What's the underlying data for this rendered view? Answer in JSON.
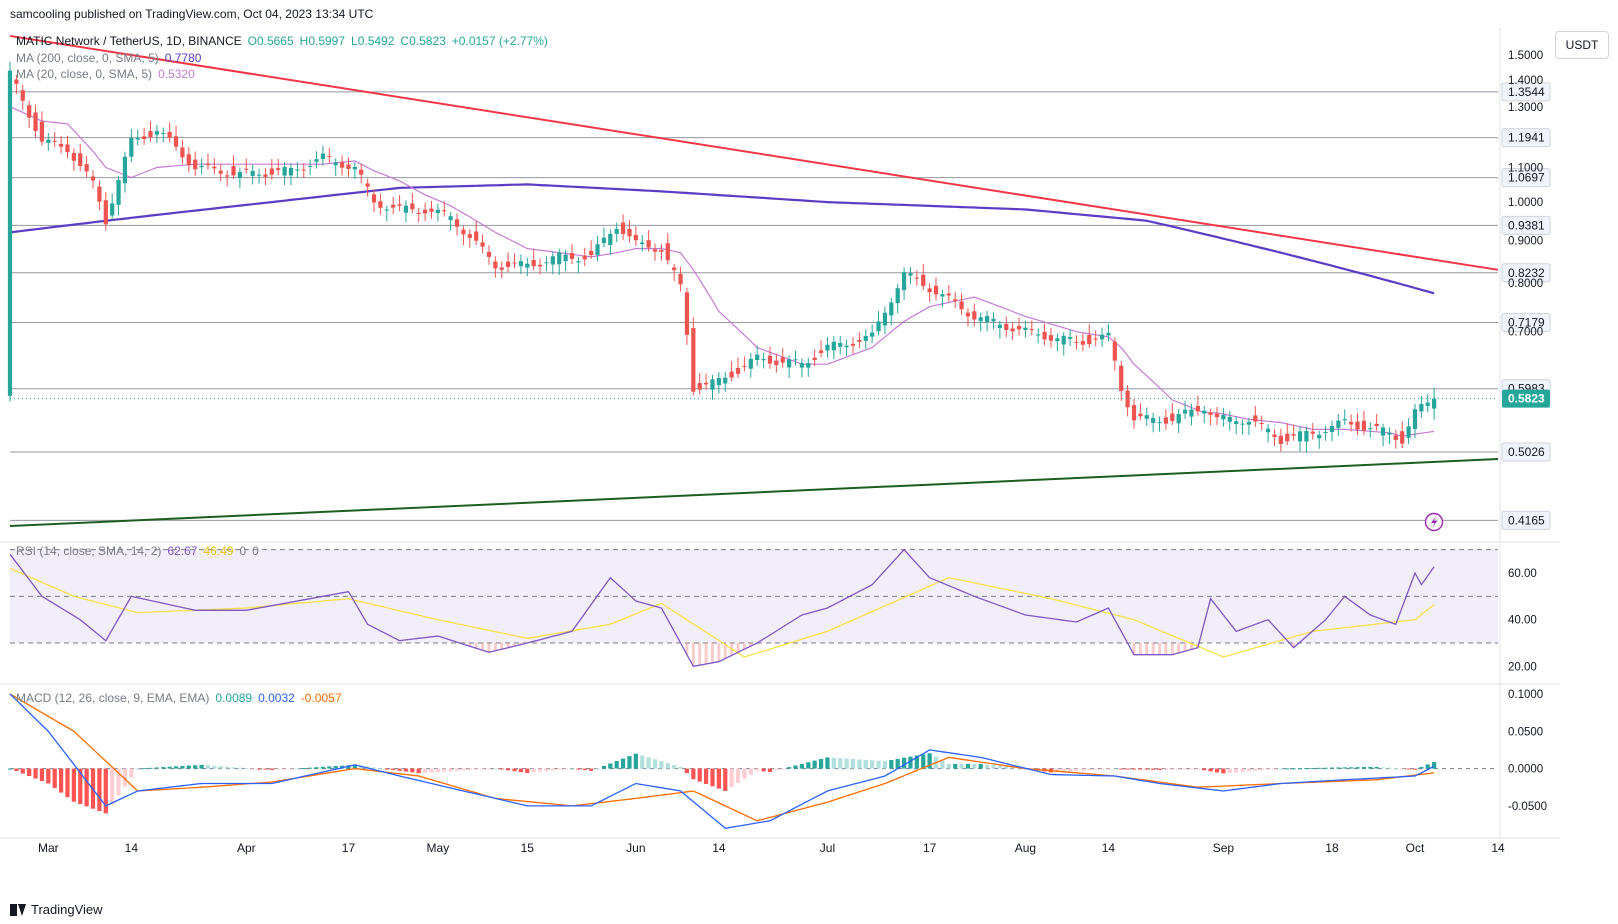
{
  "header": {
    "published": "samcooling published on TradingView.com, Oct 04, 2023 13:34 UTC"
  },
  "unit_label": "USDT",
  "footer": {
    "brand": "TradingView"
  },
  "colors": {
    "up": "#26a69a",
    "down": "#ef5350",
    "ma200": "#5b3cc4",
    "ma20": "#c67ad6",
    "resistance": "#f23645",
    "support": "#1b5e20",
    "rsi": "#7e57c2",
    "rsi_ma": "#f5e14a",
    "macd": "#2962ff",
    "signal": "#ff6d00"
  },
  "chart_data": [
    {
      "type": "candlestick",
      "legend": {
        "symbol": "MATIC Network / TetherUS, 1D, BINANCE",
        "open": "O0.5665",
        "high": "H0.5997",
        "low": "L0.5492",
        "close": "C0.5823",
        "change": "+0.0157 (+2.77%)",
        "ma200": "MA (200, close, 0, SMA, 5)",
        "ma200_value": "0.7780",
        "ma20": "MA (20, close, 0, SMA, 5)",
        "ma20_value": "0.5320"
      },
      "y_scale": "log",
      "y_range": [
        0.4,
        1.52
      ],
      "x_range": [
        "2023-02-23",
        "2023-10-14"
      ],
      "x_ticks": [
        {
          "date": "2023-03-01",
          "label": "Mar"
        },
        {
          "date": "2023-03-14",
          "label": "14"
        },
        {
          "date": "2023-04-01",
          "label": "Apr"
        },
        {
          "date": "2023-04-17",
          "label": "17"
        },
        {
          "date": "2023-05-01",
          "label": "May"
        },
        {
          "date": "2023-05-15",
          "label": "15"
        },
        {
          "date": "2023-06-01",
          "label": "Jun"
        },
        {
          "date": "2023-06-14",
          "label": "14"
        },
        {
          "date": "2023-07-01",
          "label": "Jul"
        },
        {
          "date": "2023-07-17",
          "label": "17"
        },
        {
          "date": "2023-08-01",
          "label": "Aug"
        },
        {
          "date": "2023-08-14",
          "label": "14"
        },
        {
          "date": "2023-09-01",
          "label": "Sep"
        },
        {
          "date": "2023-09-18",
          "label": "18"
        },
        {
          "date": "2023-10-01",
          "label": "Oct"
        },
        {
          "date": "2023-10-14",
          "label": "14"
        }
      ],
      "y_ticks": [
        "1.5000",
        "1.4000",
        "1.3000",
        "1.1000",
        "1.0000",
        "0.9000",
        "0.8000",
        "0.7000"
      ],
      "levels": [
        "1.3544",
        "1.1941",
        "1.0697",
        "0.9381",
        "0.8232",
        "0.7179",
        "0.5983",
        "0.5026",
        "0.4165"
      ],
      "last_price": "0.5823",
      "anchors": [
        [
          "2023-02-23",
          1.42,
          1.3
        ],
        [
          "2023-02-28",
          1.18,
          1.25
        ],
        [
          "2023-03-04",
          1.16,
          1.24
        ],
        [
          "2023-03-08",
          1.05,
          1.15
        ],
        [
          "2023-03-10",
          0.95,
          1.1
        ],
        [
          "2023-03-14",
          1.18,
          1.07
        ],
        [
          "2023-03-18",
          1.22,
          1.1
        ],
        [
          "2023-03-24",
          1.1,
          1.11
        ],
        [
          "2023-03-31",
          1.08,
          1.11
        ],
        [
          "2023-04-08",
          1.09,
          1.11
        ],
        [
          "2023-04-13",
          1.13,
          1.11
        ],
        [
          "2023-04-18",
          1.1,
          1.12
        ],
        [
          "2023-04-21",
          1.0,
          1.09
        ],
        [
          "2023-04-25",
          0.98,
          1.06
        ],
        [
          "2023-04-29",
          0.98,
          1.02
        ],
        [
          "2023-05-03",
          0.96,
          0.99
        ],
        [
          "2023-05-10",
          0.84,
          0.92
        ],
        [
          "2023-05-15",
          0.84,
          0.88
        ],
        [
          "2023-05-20",
          0.86,
          0.87
        ],
        [
          "2023-05-25",
          0.86,
          0.86
        ],
        [
          "2023-05-29",
          0.94,
          0.87
        ],
        [
          "2023-06-01",
          0.89,
          0.88
        ],
        [
          "2023-06-05",
          0.88,
          0.88
        ],
        [
          "2023-06-08",
          0.79,
          0.87
        ],
        [
          "2023-06-10",
          0.6,
          0.83
        ],
        [
          "2023-06-14",
          0.61,
          0.74
        ],
        [
          "2023-06-20",
          0.65,
          0.67
        ],
        [
          "2023-06-27",
          0.64,
          0.64
        ],
        [
          "2023-07-01",
          0.67,
          0.64
        ],
        [
          "2023-07-08",
          0.69,
          0.67
        ],
        [
          "2023-07-13",
          0.82,
          0.72
        ],
        [
          "2023-07-17",
          0.79,
          0.75
        ],
        [
          "2023-07-24",
          0.73,
          0.77
        ],
        [
          "2023-08-01",
          0.7,
          0.73
        ],
        [
          "2023-08-09",
          0.68,
          0.7
        ],
        [
          "2023-08-14",
          0.69,
          0.69
        ],
        [
          "2023-08-16",
          0.6,
          0.67
        ],
        [
          "2023-08-18",
          0.55,
          0.64
        ],
        [
          "2023-08-24",
          0.55,
          0.58
        ],
        [
          "2023-08-29",
          0.57,
          0.56
        ],
        [
          "2023-08-31",
          0.55,
          0.56
        ],
        [
          "2023-09-05",
          0.55,
          0.55
        ],
        [
          "2023-09-10",
          0.52,
          0.545
        ],
        [
          "2023-09-15",
          0.53,
          0.535
        ],
        [
          "2023-09-20",
          0.545,
          0.535
        ],
        [
          "2023-09-27",
          0.53,
          0.53
        ],
        [
          "2023-09-29",
          0.52,
          0.525
        ],
        [
          "2023-10-01",
          0.56,
          0.528
        ],
        [
          "2023-10-04",
          0.5823,
          0.532
        ]
      ],
      "ma200_anchors": [
        [
          "2023-02-23",
          0.92
        ],
        [
          "2023-03-10",
          0.95
        ],
        [
          "2023-04-05",
          1.0
        ],
        [
          "2023-04-25",
          1.04
        ],
        [
          "2023-05-15",
          1.05
        ],
        [
          "2023-06-05",
          1.03
        ],
        [
          "2023-07-01",
          1.0
        ],
        [
          "2023-08-01",
          0.98
        ],
        [
          "2023-08-20",
          0.95
        ],
        [
          "2023-09-10",
          0.87
        ],
        [
          "2023-10-04",
          0.778
        ]
      ],
      "resistance_line": [
        [
          "2023-02-23",
          1.58
        ],
        [
          "2023-10-14",
          0.83
        ]
      ],
      "support_line": [
        [
          "2023-02-23",
          0.41
        ],
        [
          "2023-10-14",
          0.493
        ]
      ]
    },
    {
      "type": "line",
      "title": "RSI (14, close, SMA, 14, 2)",
      "values_label": [
        "62.67",
        "46.49",
        "0",
        "0"
      ],
      "y_range": [
        15,
        72
      ],
      "y_ticks": [
        "60.00",
        "40.00",
        "20.00"
      ],
      "bands": [
        30,
        50,
        70
      ],
      "rsi_anchors": [
        [
          "2023-02-23",
          68
        ],
        [
          "2023-02-28",
          50
        ],
        [
          "2023-03-06",
          40
        ],
        [
          "2023-03-10",
          31
        ],
        [
          "2023-03-14",
          50
        ],
        [
          "2023-03-24",
          44
        ],
        [
          "2023-04-01",
          44
        ],
        [
          "2023-04-13",
          50
        ],
        [
          "2023-04-17",
          52
        ],
        [
          "2023-04-20",
          38
        ],
        [
          "2023-04-25",
          31
        ],
        [
          "2023-05-01",
          33
        ],
        [
          "2023-05-09",
          26
        ],
        [
          "2023-05-15",
          30
        ],
        [
          "2023-05-22",
          35
        ],
        [
          "2023-05-28",
          58
        ],
        [
          "2023-06-01",
          48
        ],
        [
          "2023-06-05",
          45
        ],
        [
          "2023-06-10",
          20
        ],
        [
          "2023-06-14",
          22
        ],
        [
          "2023-06-20",
          30
        ],
        [
          "2023-06-27",
          42
        ],
        [
          "2023-07-01",
          45
        ],
        [
          "2023-07-08",
          55
        ],
        [
          "2023-07-13",
          70
        ],
        [
          "2023-07-17",
          58
        ],
        [
          "2023-07-24",
          50
        ],
        [
          "2023-08-01",
          42
        ],
        [
          "2023-08-09",
          39
        ],
        [
          "2023-08-14",
          45
        ],
        [
          "2023-08-18",
          25
        ],
        [
          "2023-08-24",
          25
        ],
        [
          "2023-08-28",
          28
        ],
        [
          "2023-08-30",
          49
        ],
        [
          "2023-09-03",
          35
        ],
        [
          "2023-09-08",
          40
        ],
        [
          "2023-09-12",
          28
        ],
        [
          "2023-09-17",
          40
        ],
        [
          "2023-09-20",
          50
        ],
        [
          "2023-09-24",
          42
        ],
        [
          "2023-09-28",
          38
        ],
        [
          "2023-10-01",
          60
        ],
        [
          "2023-10-02",
          55
        ],
        [
          "2023-10-04",
          62.67
        ]
      ],
      "rsi_ma_anchors": [
        [
          "2023-02-23",
          62
        ],
        [
          "2023-03-05",
          50
        ],
        [
          "2023-03-15",
          43
        ],
        [
          "2023-04-01",
          45
        ],
        [
          "2023-04-17",
          49
        ],
        [
          "2023-05-01",
          40
        ],
        [
          "2023-05-15",
          32
        ],
        [
          "2023-05-28",
          38
        ],
        [
          "2023-06-05",
          47
        ],
        [
          "2023-06-18",
          24
        ],
        [
          "2023-07-01",
          35
        ],
        [
          "2023-07-20",
          58
        ],
        [
          "2023-08-05",
          49
        ],
        [
          "2023-08-18",
          40
        ],
        [
          "2023-09-01",
          24
        ],
        [
          "2023-09-15",
          35
        ],
        [
          "2023-10-01",
          40
        ],
        [
          "2023-10-04",
          46.49
        ]
      ]
    },
    {
      "type": "line",
      "title": "MACD (12, 26, close, 9, EMA, EMA)",
      "values_label": [
        "0.0089",
        "0.0032",
        "-0.0057"
      ],
      "y_range": [
        -0.085,
        0.108
      ],
      "y_ticks": [
        "0.1000",
        "0.0500",
        "0.0000",
        "-0.0500"
      ],
      "macd_anchors": [
        [
          "2023-02-23",
          0.1
        ],
        [
          "2023-03-01",
          0.05
        ],
        [
          "2023-03-10",
          -0.05
        ],
        [
          "2023-03-15",
          -0.03
        ],
        [
          "2023-03-25",
          -0.02
        ],
        [
          "2023-04-05",
          -0.02
        ],
        [
          "2023-04-18",
          0.005
        ],
        [
          "2023-04-25",
          -0.01
        ],
        [
          "2023-05-05",
          -0.03
        ],
        [
          "2023-05-15",
          -0.05
        ],
        [
          "2023-05-25",
          -0.05
        ],
        [
          "2023-06-01",
          -0.02
        ],
        [
          "2023-06-08",
          -0.03
        ],
        [
          "2023-06-15",
          -0.08
        ],
        [
          "2023-06-22",
          -0.07
        ],
        [
          "2023-07-01",
          -0.03
        ],
        [
          "2023-07-10",
          -0.01
        ],
        [
          "2023-07-17",
          0.025
        ],
        [
          "2023-07-25",
          0.015
        ],
        [
          "2023-08-05",
          -0.008
        ],
        [
          "2023-08-15",
          -0.01
        ],
        [
          "2023-08-22",
          -0.02
        ],
        [
          "2023-09-01",
          -0.03
        ],
        [
          "2023-09-10",
          -0.02
        ],
        [
          "2023-09-20",
          -0.015
        ],
        [
          "2023-10-01",
          -0.01
        ],
        [
          "2023-10-04",
          0.0032
        ]
      ],
      "signal_anchors": [
        [
          "2023-02-23",
          0.1
        ],
        [
          "2023-03-05",
          0.05
        ],
        [
          "2023-03-15",
          -0.03
        ],
        [
          "2023-03-25",
          -0.025
        ],
        [
          "2023-04-05",
          -0.018
        ],
        [
          "2023-04-18",
          0.0
        ],
        [
          "2023-04-28",
          -0.01
        ],
        [
          "2023-05-10",
          -0.04
        ],
        [
          "2023-05-22",
          -0.05
        ],
        [
          "2023-06-01",
          -0.04
        ],
        [
          "2023-06-10",
          -0.03
        ],
        [
          "2023-06-20",
          -0.07
        ],
        [
          "2023-07-01",
          -0.045
        ],
        [
          "2023-07-10",
          -0.02
        ],
        [
          "2023-07-20",
          0.015
        ],
        [
          "2023-08-01",
          0.0
        ],
        [
          "2023-08-15",
          -0.01
        ],
        [
          "2023-08-28",
          -0.025
        ],
        [
          "2023-09-10",
          -0.02
        ],
        [
          "2023-09-25",
          -0.015
        ],
        [
          "2023-10-04",
          -0.0057
        ]
      ]
    }
  ]
}
